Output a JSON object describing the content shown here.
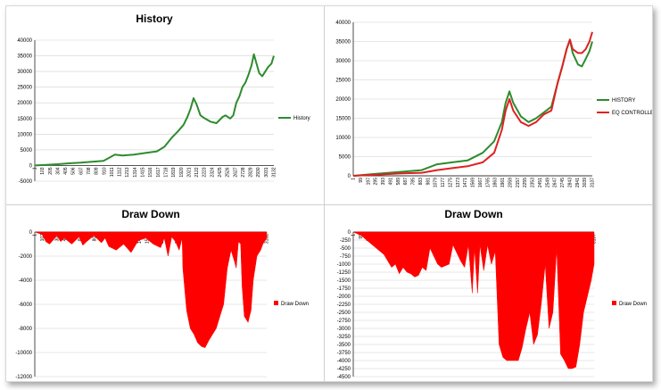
{
  "chart_data": [
    {
      "id": "history",
      "type": "line",
      "title": "History",
      "xlabel": "",
      "ylabel": "",
      "ylim": [
        -5000,
        40000
      ],
      "yticks": [
        40000,
        35000,
        30000,
        25000,
        20000,
        15000,
        10000,
        5000,
        0,
        -5000
      ],
      "xticks": [
        "1",
        "103",
        "205",
        "304",
        "405",
        "506",
        "607",
        "708",
        "809",
        "910",
        "1011",
        "1112",
        "1213",
        "1314",
        "1415",
        "1516",
        "1617",
        "1718",
        "1819",
        "1920",
        "2021",
        "2122",
        "2223",
        "2324",
        "2425",
        "2526",
        "2627",
        "2728",
        "2829",
        "2930",
        "3031",
        "3132"
      ],
      "legend_position": "right",
      "series": [
        {
          "name": "History",
          "color": "#2e8b2e",
          "x": [
            1,
            150,
            300,
            450,
            600,
            750,
            900,
            1000,
            1050,
            1150,
            1300,
            1450,
            1600,
            1700,
            1800,
            1880,
            1950,
            2000,
            2040,
            2080,
            2120,
            2170,
            2230,
            2300,
            2380,
            2420,
            2460,
            2500,
            2560,
            2600,
            2640,
            2680,
            2720,
            2760,
            2800,
            2840,
            2870,
            2900,
            2940,
            2980,
            3020,
            3060,
            3100,
            3132
          ],
          "values": [
            0,
            200,
            400,
            700,
            900,
            1200,
            1500,
            2800,
            3500,
            3200,
            3500,
            4000,
            4500,
            6000,
            9000,
            11000,
            13000,
            15500,
            18000,
            21500,
            19500,
            16000,
            15000,
            14000,
            13500,
            14500,
            15500,
            16000,
            15000,
            16000,
            20000,
            22000,
            25000,
            26500,
            29000,
            32000,
            35500,
            33000,
            29500,
            28500,
            30000,
            31500,
            32500,
            35000
          ]
        }
      ]
    },
    {
      "id": "history-eq",
      "type": "line",
      "title": "",
      "xlabel": "",
      "ylabel": "",
      "ylim": [
        0,
        40000
      ],
      "yticks": [
        40000,
        35000,
        30000,
        25000,
        20000,
        15000,
        10000,
        5000,
        0
      ],
      "xticks": [
        "1",
        "99",
        "197",
        "295",
        "393",
        "491",
        "589",
        "687",
        "785",
        "883",
        "981",
        "1079",
        "1177",
        "1275",
        "1373",
        "1471",
        "1569",
        "1667",
        "1765",
        "1863",
        "1961",
        "2059",
        "2157",
        "2255",
        "2353",
        "2451",
        "2549",
        "2647",
        "2745",
        "2843",
        "2941",
        "3039",
        "3137"
      ],
      "legend_position": "right",
      "series": [
        {
          "name": "HISTORY",
          "color": "#2e8b2e",
          "x": [
            1,
            300,
            600,
            900,
            1100,
            1300,
            1500,
            1700,
            1850,
            1950,
            2000,
            2050,
            2100,
            2200,
            2300,
            2400,
            2500,
            2600,
            2680,
            2750,
            2800,
            2843,
            2880,
            2950,
            3000,
            3050,
            3100,
            3137
          ],
          "values": [
            0,
            500,
            1000,
            1500,
            3000,
            3500,
            4000,
            6000,
            9000,
            14000,
            19000,
            22000,
            19000,
            15500,
            14000,
            15000,
            16500,
            18000,
            24000,
            29000,
            33000,
            35500,
            32000,
            29000,
            28500,
            30500,
            32500,
            35000
          ]
        },
        {
          "name": "EQ CONTROLLED",
          "color": "#e02020",
          "x": [
            1,
            300,
            600,
            900,
            1100,
            1300,
            1500,
            1700,
            1850,
            1950,
            2000,
            2050,
            2100,
            2200,
            2300,
            2400,
            2500,
            2600,
            2680,
            2750,
            2800,
            2843,
            2880,
            2950,
            3000,
            3050,
            3100,
            3137
          ],
          "values": [
            0,
            300,
            600,
            800,
            1500,
            2000,
            2500,
            3500,
            6000,
            12000,
            17000,
            20000,
            17000,
            14000,
            13000,
            14000,
            16000,
            17000,
            24000,
            29000,
            33000,
            35500,
            33000,
            32000,
            32000,
            33000,
            35000,
            37500
          ]
        }
      ]
    },
    {
      "id": "drawdown-left",
      "type": "area",
      "title": "Draw Down",
      "xlabel": "",
      "ylabel": "",
      "ylim": [
        -12000,
        0
      ],
      "yticks": [
        0,
        -2000,
        -4000,
        -6000,
        -8000,
        -10000,
        -12000
      ],
      "xticks": [
        "1",
        "102",
        "203",
        "304",
        "405",
        "506",
        "607",
        "708",
        "809",
        "910",
        "1011",
        "1112",
        "1213",
        "1314",
        "1415",
        "1516",
        "1617",
        "1718",
        "1819",
        "1920",
        "2021",
        "2122",
        "2223",
        "2324",
        "2425",
        "2526",
        "2627",
        "2728",
        "2829",
        "2930",
        "3031",
        "3132"
      ],
      "legend_position": "right",
      "series": [
        {
          "name": "Draw Down",
          "color": "#ff0000",
          "x": [
            1,
            100,
            150,
            200,
            260,
            300,
            350,
            400,
            500,
            600,
            650,
            700,
            800,
            900,
            950,
            1000,
            1100,
            1200,
            1300,
            1400,
            1500,
            1600,
            1700,
            1750,
            1800,
            1850,
            1900,
            1950,
            1990,
            2000,
            2050,
            2100,
            2150,
            2200,
            2250,
            2300,
            2350,
            2400,
            2450,
            2500,
            2550,
            2600,
            2650,
            2700,
            2720,
            2750,
            2780,
            2800,
            2830,
            2850,
            2880,
            2900,
            2920,
            2950,
            3000,
            3050,
            3080,
            3100,
            3132
          ],
          "values": [
            0,
            -200,
            -800,
            -1000,
            -600,
            -300,
            -800,
            -500,
            -1000,
            -400,
            -1100,
            -800,
            -300,
            -900,
            -500,
            -1200,
            -1500,
            -1000,
            -1700,
            -700,
            -500,
            -1000,
            -1300,
            -500,
            -2000,
            -400,
            -800,
            -1500,
            -500,
            -3000,
            -6500,
            -8000,
            -8500,
            -9200,
            -9500,
            -9600,
            -9000,
            -8500,
            -8000,
            -7000,
            -6000,
            -3000,
            -1500,
            -2500,
            -3000,
            -800,
            -1000,
            -4500,
            -7000,
            -7200,
            -7500,
            -7000,
            -6500,
            -4000,
            -2000,
            -1500,
            -1000,
            -800,
            -500
          ]
        }
      ]
    },
    {
      "id": "drawdown-right",
      "type": "area",
      "title": "Draw Down",
      "xlabel": "",
      "ylabel": "",
      "ylim": [
        -4500,
        0
      ],
      "yticks": [
        0,
        -250,
        -500,
        -750,
        -1000,
        -1250,
        -1500,
        -1750,
        -2000,
        -2250,
        -2500,
        -2750,
        -3000,
        -3250,
        -3500,
        -3750,
        -4000,
        -4250,
        -4500
      ],
      "xticks": [
        "1",
        "99",
        "197",
        "295",
        "393",
        "491",
        "589",
        "687",
        "785",
        "883",
        "981",
        "1079",
        "1177",
        "1275",
        "1373",
        "1471",
        "1569",
        "1667",
        "1765",
        "1863",
        "1961",
        "2059",
        "2157",
        "2255",
        "2353",
        "2451",
        "2549",
        "2647",
        "2745",
        "2843",
        "2941",
        "3039",
        "3137"
      ],
      "legend_position": "right",
      "series": [
        {
          "name": "Draw Down",
          "color": "#ff0000",
          "x": [
            1,
            100,
            200,
            300,
            400,
            450,
            500,
            550,
            600,
            650,
            700,
            750,
            800,
            850,
            900,
            950,
            1000,
            1100,
            1150,
            1200,
            1250,
            1300,
            1400,
            1450,
            1500,
            1550,
            1580,
            1620,
            1650,
            1700,
            1750,
            1800,
            1850,
            1900,
            1950,
            2000,
            2050,
            2100,
            2150,
            2200,
            2250,
            2300,
            2350,
            2400,
            2450,
            2500,
            2550,
            2600,
            2650,
            2700,
            2750,
            2800,
            2850,
            2900,
            2950,
            3000,
            3050,
            3100,
            3137
          ],
          "values": [
            0,
            -100,
            -300,
            -500,
            -700,
            -900,
            -1100,
            -1000,
            -1300,
            -1100,
            -1250,
            -1300,
            -1400,
            -1350,
            -1100,
            -1200,
            -500,
            -1000,
            -1100,
            -1050,
            -1000,
            -400,
            -900,
            -1100,
            -400,
            -1900,
            -500,
            -1900,
            -400,
            -1200,
            -400,
            -1000,
            -600,
            -3500,
            -3900,
            -4000,
            -4000,
            -4000,
            -4000,
            -3600,
            -3000,
            -2500,
            -3500,
            -3200,
            -2200,
            -1000,
            -3000,
            -2500,
            -500,
            -3800,
            -4000,
            -4250,
            -4250,
            -4200,
            -3500,
            -2500,
            -2000,
            -1500,
            -1000
          ]
        }
      ]
    }
  ]
}
